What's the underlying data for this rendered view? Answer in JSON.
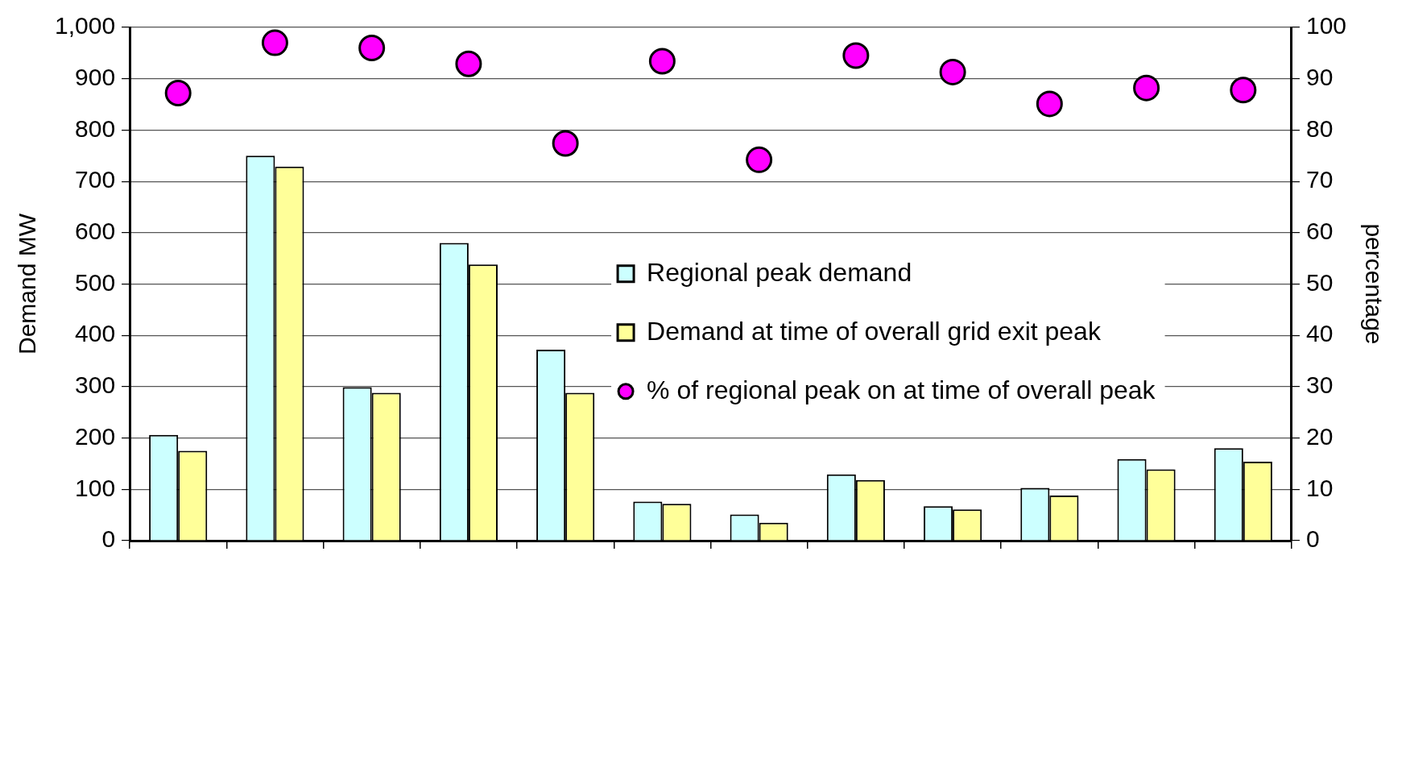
{
  "chart_data": {
    "type": "bar",
    "categories": [
      null,
      null,
      null,
      null,
      null,
      null,
      null,
      null,
      null,
      null,
      null,
      null
    ],
    "series": [
      {
        "name": "Regional peak demand",
        "color": "#ccffff",
        "values": [
          206,
          750,
          299,
          580,
          372,
          76,
          51,
          129,
          67,
          103,
          159,
          180
        ]
      },
      {
        "name": "Demand at time of overall grid exit peak",
        "color": "#ffff99",
        "values": [
          175,
          729,
          288,
          538,
          288,
          72,
          35,
          118,
          61,
          88,
          139,
          154
        ]
      },
      {
        "name": "% of regional peak on at time of overall peak",
        "type": "scatter",
        "axis": "y2",
        "color": "#ff00ff",
        "values": [
          87.2,
          97.0,
          96.0,
          92.9,
          77.4,
          93.4,
          74.2,
          94.5,
          91.3,
          85.1,
          88.2,
          87.8
        ]
      }
    ],
    "ylabel": "Demand MW",
    "y2label": "percentage",
    "ylim": [
      0,
      1000
    ],
    "yticks": [
      0,
      {
        "value": 100,
        "label": "100"
      },
      200,
      300,
      400,
      500,
      600,
      700,
      800,
      900,
      {
        "value": 1000,
        "label": "1,000"
      }
    ],
    "y2lim": [
      0,
      100
    ],
    "y2ticks": [
      0,
      10,
      20,
      30,
      40,
      50,
      60,
      70,
      80,
      90,
      100
    ],
    "grid": "y",
    "legend": "right",
    "marker": "circle"
  }
}
